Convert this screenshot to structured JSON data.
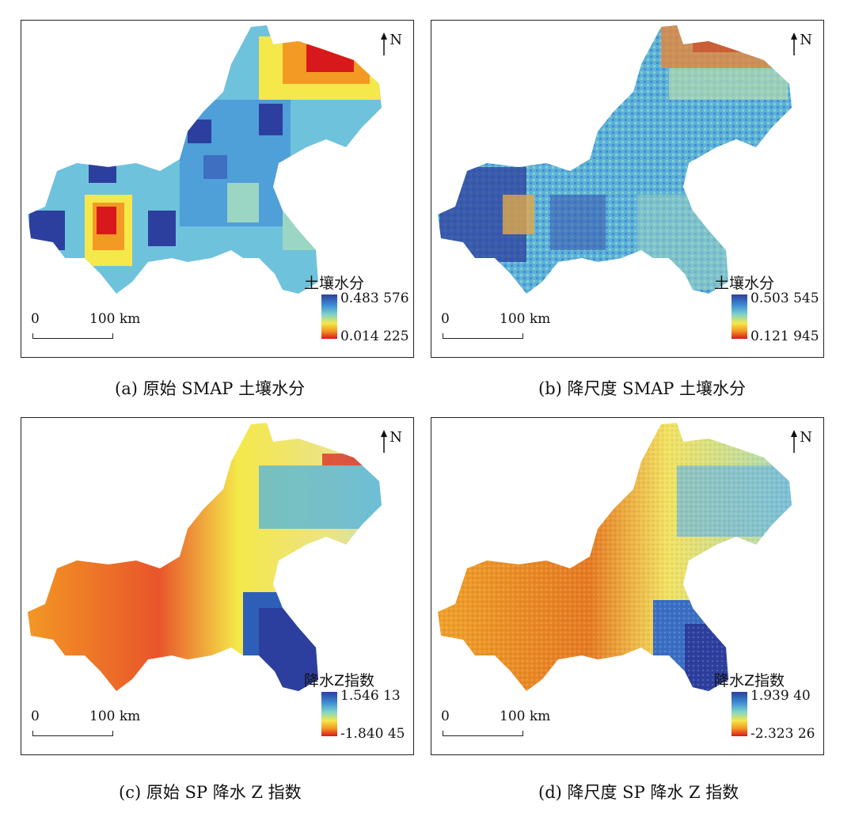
{
  "north_label": "N",
  "scale": {
    "zero": "0",
    "distance": "100 km"
  },
  "panels": {
    "a": {
      "legend_title": "土壤水分",
      "max": "0.483 576",
      "min": "0.014 225",
      "caption": "(a) 原始 SMAP 土壤水分"
    },
    "b": {
      "legend_title": "土壤水分",
      "max": "0.503 545",
      "min": "0.121 945",
      "caption": "(b) 降尺度 SMAP 土壤水分"
    },
    "c": {
      "legend_title": "降水Z指数",
      "max": "1.546 13",
      "min": "-1.840 45",
      "caption": "(c) 原始 SP 降水 Z 指数"
    },
    "d": {
      "legend_title": "降水Z指数",
      "max": "1.939 40",
      "min": "-2.323 26",
      "caption": "(d) 降尺度 SP 降水 Z 指数"
    }
  },
  "colors": {
    "deep_blue": "#2d3f9e",
    "blue": "#3e8fd6",
    "cyan": "#7fd3c8",
    "yellow": "#f5e84a",
    "orange": "#f39a24",
    "red": "#d7191c"
  }
}
